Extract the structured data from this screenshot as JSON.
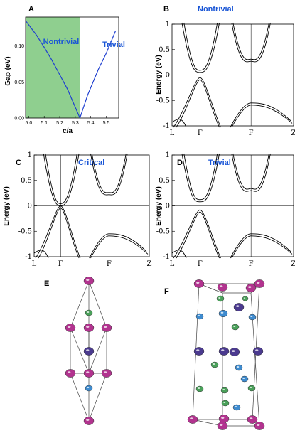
{
  "panels": {
    "A": {
      "label": "A"
    },
    "B": {
      "label": "B",
      "title": "Nontrivial"
    },
    "C": {
      "label": "C",
      "title": "Critical"
    },
    "D": {
      "label": "D",
      "title": "Trivial"
    },
    "E": {
      "label": "E"
    },
    "F": {
      "label": "F"
    }
  },
  "colors": {
    "nontrivial_region": "#8fcf8f",
    "gap_line": "#1f3fd0",
    "title_blue": "#1a56d6",
    "atom_magenta": "#b2338f",
    "atom_indigo": "#4b3a8f",
    "atom_blue": "#3e8bcf",
    "atom_green": "#4aa15a"
  },
  "chart_data": [
    {
      "type": "line",
      "panel": "A",
      "xlabel": "c/a",
      "ylabel": "Gap (eV)",
      "xlim": [
        4.98,
        5.58
      ],
      "ylim": [
        0,
        0.14
      ],
      "xticks": [
        "5.0",
        "5.1",
        "5.2",
        "5.3",
        "5.4",
        "5.5"
      ],
      "xtick_values": [
        5.0,
        5.1,
        5.2,
        5.3,
        5.4,
        5.5
      ],
      "yticks": [
        "0.00",
        "0.05",
        "0.10"
      ],
      "ytick_values": [
        0,
        0.05,
        0.1
      ],
      "regions": [
        {
          "label": "Nontrivial",
          "from": 4.98,
          "to": 5.33
        },
        {
          "label": "Trivial",
          "from": 5.33,
          "to": 5.58
        }
      ],
      "series": [
        {
          "x": [
            4.98,
            5.05,
            5.1,
            5.15,
            5.2,
            5.25,
            5.3,
            5.33,
            5.38,
            5.45,
            5.5,
            5.56
          ],
          "y": [
            0.135,
            0.115,
            0.098,
            0.08,
            0.06,
            0.04,
            0.015,
            0.0,
            0.032,
            0.068,
            0.09,
            0.121
          ]
        }
      ]
    },
    {
      "type": "line",
      "panel": "bands",
      "ylabel": "Energy (eV)",
      "ylim": [
        -1,
        1
      ],
      "yticks": [
        "1",
        "0.5",
        "0",
        "-0.5",
        "-1"
      ],
      "ytick_values": [
        1,
        0.5,
        0,
        -0.5,
        -1
      ],
      "kpoints": [
        "L",
        "Γ",
        "F",
        "Z"
      ]
    }
  ]
}
